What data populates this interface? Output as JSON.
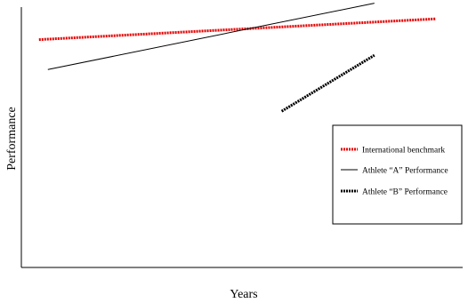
{
  "chart_data": {
    "type": "line",
    "title": "",
    "xlabel": "Years",
    "ylabel": "Performance",
    "xlim": [
      0,
      100
    ],
    "ylim": [
      0,
      100
    ],
    "grid": false,
    "legend_position": "right",
    "series": [
      {
        "name": "International benchmark",
        "x": [
          4,
          94
        ],
        "y": [
          87.5,
          95.5
        ],
        "color": "#e60000",
        "style": "dotted-thick"
      },
      {
        "name": "Athlete “A” Performance",
        "x": [
          6,
          80
        ],
        "y": [
          76,
          101.5
        ],
        "color": "#000000",
        "style": "solid-thin"
      },
      {
        "name": "Athlete “B” Performance",
        "x": [
          59,
          80
        ],
        "y": [
          60,
          81.5
        ],
        "color": "#000000",
        "style": "dotted-thick"
      }
    ]
  }
}
